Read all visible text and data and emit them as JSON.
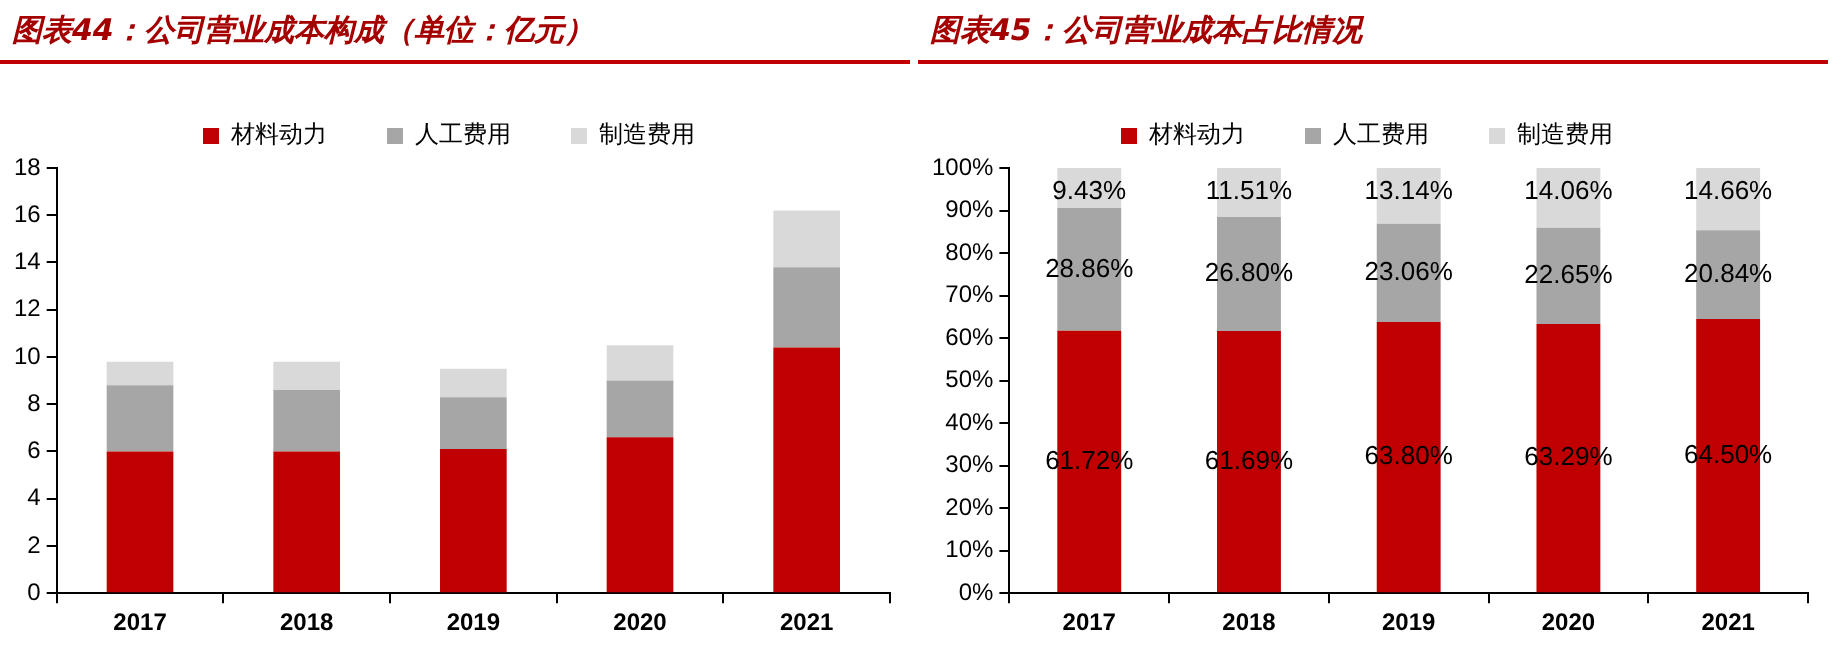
{
  "chart_data": [
    {
      "type": "bar",
      "title": "图表44：公司营业成本构成（单位：亿元）",
      "categories": [
        "2017",
        "2018",
        "2019",
        "2020",
        "2021"
      ],
      "stacked": true,
      "legend": "top",
      "grid": false,
      "ylim": [
        0,
        18
      ],
      "yticks": [
        0,
        2,
        4,
        6,
        8,
        10,
        12,
        14,
        16,
        18
      ],
      "series": [
        {
          "name": "材料动力",
          "color": "#c00000",
          "values": [
            6.0,
            6.0,
            6.1,
            6.6,
            10.4
          ]
        },
        {
          "name": "人工费用",
          "color": "#a6a6a6",
          "values": [
            2.8,
            2.6,
            2.2,
            2.4,
            3.4
          ]
        },
        {
          "name": "制造费用",
          "color": "#d9d9d9",
          "values": [
            1.0,
            1.2,
            1.2,
            1.5,
            2.4
          ]
        }
      ]
    },
    {
      "type": "bar",
      "title": "图表45：公司营业成本占比情况",
      "categories": [
        "2017",
        "2018",
        "2019",
        "2020",
        "2021"
      ],
      "stacked": true,
      "legend": "top",
      "grid": false,
      "ylim": [
        0,
        100
      ],
      "yticks": [
        {
          "value": 0,
          "label": "0%"
        },
        {
          "value": 10,
          "label": "10%"
        },
        {
          "value": 20,
          "label": "20%"
        },
        {
          "value": 30,
          "label": "30%"
        },
        {
          "value": 40,
          "label": "40%"
        },
        {
          "value": 50,
          "label": "50%"
        },
        {
          "value": 60,
          "label": "60%"
        },
        {
          "value": 70,
          "label": "70%"
        },
        {
          "value": 80,
          "label": "80%"
        },
        {
          "value": 90,
          "label": "90%"
        },
        {
          "value": 100,
          "label": "100%"
        }
      ],
      "series": [
        {
          "name": "材料动力",
          "color": "#c00000",
          "values": [
            61.72,
            61.69,
            63.8,
            63.29,
            64.5
          ],
          "value_labels": [
            "61.72%",
            "61.69%",
            "63.80%",
            "63.29%",
            "64.50%"
          ]
        },
        {
          "name": "人工费用",
          "color": "#a6a6a6",
          "values": [
            28.86,
            26.8,
            23.06,
            22.65,
            20.84
          ],
          "value_labels": [
            "28.86%",
            "26.80%",
            "23.06%",
            "22.65%",
            "20.84%"
          ]
        },
        {
          "name": "制造费用",
          "color": "#d9d9d9",
          "values": [
            9.43,
            11.51,
            13.14,
            14.06,
            14.66
          ],
          "value_labels": [
            "9.43%",
            "11.51%",
            "13.14%",
            "14.06%",
            "14.66%"
          ]
        }
      ]
    }
  ]
}
